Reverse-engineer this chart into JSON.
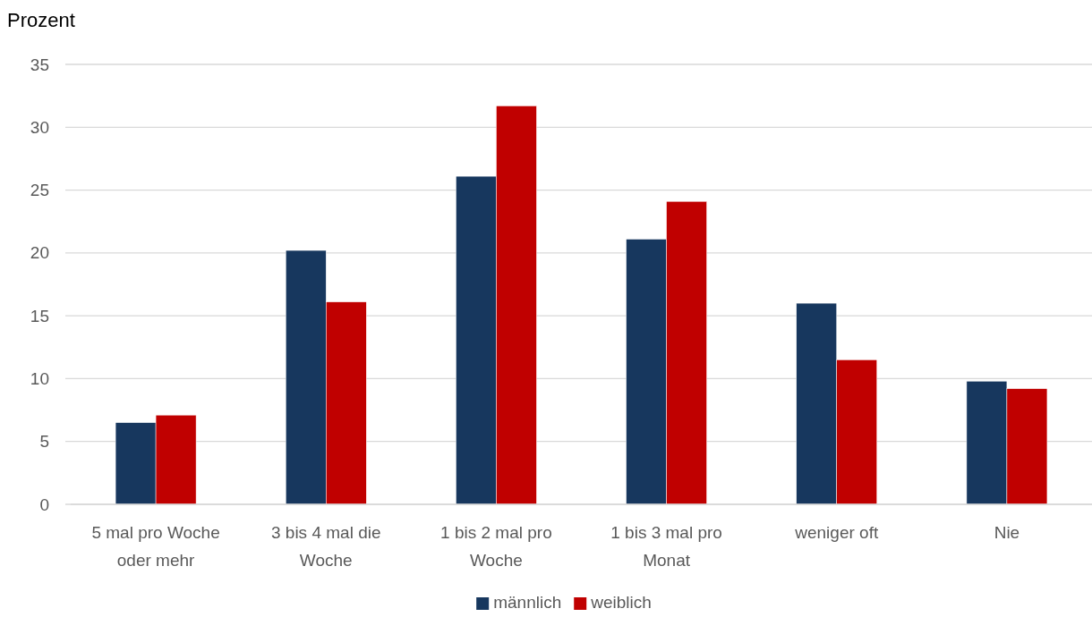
{
  "chart_data": {
    "type": "bar",
    "ylabel": "Prozent",
    "categories": [
      "5 mal pro Woche oder mehr",
      "3 bis 4 mal die Woche",
      "1 bis 2 mal pro Woche",
      "1 bis 3 mal pro Monat",
      "weniger oft",
      "Nie"
    ],
    "series": [
      {
        "name": "männlich",
        "color": "#17375e",
        "values": [
          6.5,
          20.2,
          26.1,
          21.1,
          16.0,
          9.8
        ]
      },
      {
        "name": "weiblich",
        "color": "#c00000",
        "values": [
          7.1,
          16.1,
          31.7,
          24.1,
          11.5,
          9.2
        ]
      }
    ],
    "ylim": [
      0,
      35
    ],
    "yticks": [
      0,
      5,
      10,
      15,
      20,
      25,
      30,
      35
    ],
    "grid": "y",
    "legend": "bottom"
  }
}
